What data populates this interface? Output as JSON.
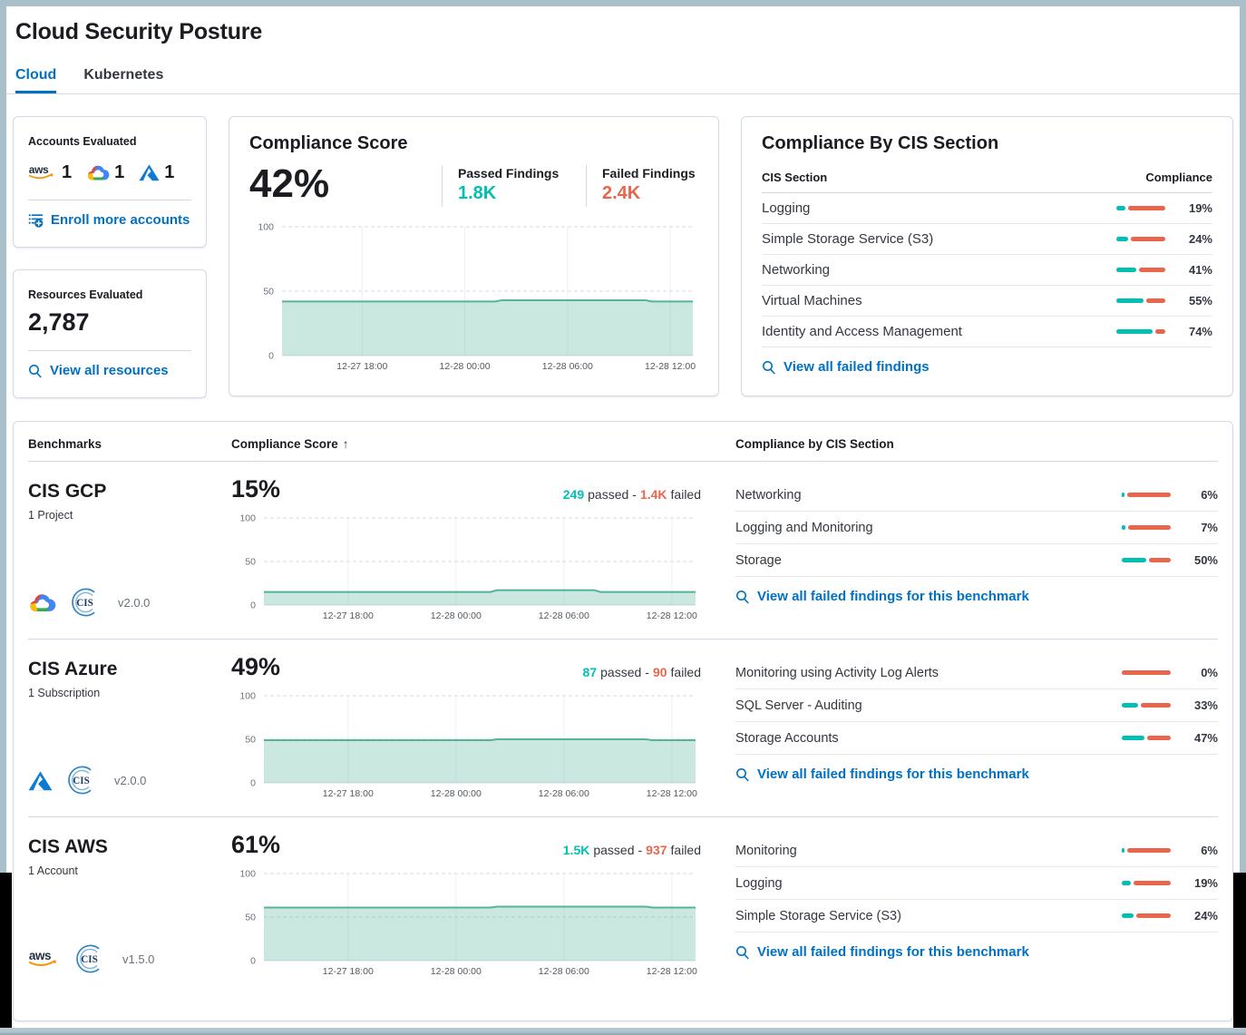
{
  "page": {
    "title": "Cloud Security Posture"
  },
  "tabs": [
    {
      "label": "Cloud"
    },
    {
      "label": "Kubernetes"
    }
  ],
  "accounts_card": {
    "title": "Accounts Evaluated",
    "providers": [
      {
        "name": "AWS",
        "count": "1"
      },
      {
        "name": "Google Cloud",
        "count": "1"
      },
      {
        "name": "Azure",
        "count": "1"
      }
    ],
    "enroll_link": "Enroll more accounts"
  },
  "resources_card": {
    "title": "Resources Evaluated",
    "count": "2,787",
    "view_link": "View all resources"
  },
  "score_card": {
    "title": "Compliance Score",
    "score": "42%",
    "passed_label": "Passed Findings",
    "passed_value": "1.8K",
    "failed_label": "Failed Findings",
    "failed_value": "2.4K"
  },
  "cis_card": {
    "title": "Compliance By CIS Section",
    "columns": {
      "section": "CIS Section",
      "compliance": "Compliance"
    },
    "rows": [
      {
        "name": "Logging",
        "pct": 19
      },
      {
        "name": "Simple Storage Service (S3)",
        "pct": 24
      },
      {
        "name": "Networking",
        "pct": 41
      },
      {
        "name": "Virtual Machines",
        "pct": 55
      },
      {
        "name": "Identity and Access Management",
        "pct": 74
      }
    ],
    "view_link": "View all failed findings"
  },
  "benchmarks": {
    "columns": {
      "benchmarks": "Benchmarks",
      "score": "Compliance Score",
      "sort_indicator": "↑",
      "sections": "Compliance by CIS Section"
    },
    "passed_word": "passed",
    "failed_word": "failed",
    "separator": "-",
    "view_link": "View all failed findings for this benchmark",
    "rows": [
      {
        "name": "CIS GCP",
        "scope": "1 Project",
        "score": "15%",
        "passed": "249",
        "failed": "1.4K",
        "version": "v2.0.0",
        "provider": "gcp",
        "sections": [
          {
            "name": "Networking",
            "pct": 6
          },
          {
            "name": "Logging and Monitoring",
            "pct": 7
          },
          {
            "name": "Storage",
            "pct": 50
          }
        ]
      },
      {
        "name": "CIS Azure",
        "scope": "1 Subscription",
        "score": "49%",
        "passed": "87",
        "failed": "90",
        "version": "v2.0.0",
        "provider": "azure",
        "sections": [
          {
            "name": "Monitoring using Activity Log Alerts",
            "pct": 0
          },
          {
            "name": "SQL Server - Auditing",
            "pct": 33
          },
          {
            "name": "Storage Accounts",
            "pct": 47
          }
        ]
      },
      {
        "name": "CIS AWS",
        "scope": "1 Account",
        "score": "61%",
        "passed": "1.5K",
        "failed": "937",
        "version": "v1.5.0",
        "provider": "aws",
        "sections": [
          {
            "name": "Monitoring",
            "pct": 6
          },
          {
            "name": "Logging",
            "pct": 19
          },
          {
            "name": "Simple Storage Service (S3)",
            "pct": 24
          }
        ]
      }
    ]
  },
  "colors": {
    "accent_teal": "#00BFB3",
    "accent_orange": "#E7664C",
    "link_blue": "#0071C2",
    "chart_line": "#54B399",
    "chart_fill": "rgba(84,179,153,0.30)"
  },
  "chart_data": [
    {
      "type": "area",
      "title": "Compliance Score trend",
      "ylabel": "",
      "ylim": [
        0,
        100
      ],
      "y_ticks": [
        0,
        50,
        100
      ],
      "x_ticks": [
        {
          "f": 0.195,
          "label": "12-27 18:00"
        },
        {
          "f": 0.445,
          "label": "12-28 00:00"
        },
        {
          "f": 0.695,
          "label": "12-28 06:00"
        },
        {
          "f": 0.945,
          "label": "12-28 12:00"
        }
      ],
      "points": [
        [
          0,
          42
        ],
        [
          0.52,
          42
        ],
        [
          0.535,
          43
        ],
        [
          0.885,
          43
        ],
        [
          0.9,
          42
        ],
        [
          1,
          42
        ]
      ],
      "grid": true,
      "legend": false
    },
    {
      "type": "area",
      "title": "CIS GCP compliance trend",
      "ylabel": "",
      "ylim": [
        0,
        100
      ],
      "y_ticks": [
        0,
        50,
        100
      ],
      "x_ticks": [
        {
          "f": 0.195,
          "label": "12-27 18:00"
        },
        {
          "f": 0.445,
          "label": "12-28 00:00"
        },
        {
          "f": 0.695,
          "label": "12-28 06:00"
        },
        {
          "f": 0.945,
          "label": "12-28 12:00"
        }
      ],
      "points": [
        [
          0,
          15
        ],
        [
          0.525,
          15
        ],
        [
          0.54,
          17
        ],
        [
          0.765,
          17
        ],
        [
          0.78,
          15
        ],
        [
          1,
          15
        ]
      ],
      "grid": true,
      "legend": false
    },
    {
      "type": "area",
      "title": "CIS Azure compliance trend",
      "ylabel": "",
      "ylim": [
        0,
        100
      ],
      "y_ticks": [
        0,
        50,
        100
      ],
      "x_ticks": [
        {
          "f": 0.195,
          "label": "12-27 18:00"
        },
        {
          "f": 0.445,
          "label": "12-28 00:00"
        },
        {
          "f": 0.695,
          "label": "12-28 06:00"
        },
        {
          "f": 0.945,
          "label": "12-28 12:00"
        }
      ],
      "points": [
        [
          0,
          49
        ],
        [
          0.525,
          49
        ],
        [
          0.54,
          50
        ],
        [
          0.885,
          50
        ],
        [
          0.9,
          49
        ],
        [
          1,
          49
        ]
      ],
      "grid": true,
      "legend": false
    },
    {
      "type": "area",
      "title": "CIS AWS compliance trend",
      "ylabel": "",
      "ylim": [
        0,
        100
      ],
      "y_ticks": [
        0,
        50,
        100
      ],
      "x_ticks": [
        {
          "f": 0.195,
          "label": "12-27 18:00"
        },
        {
          "f": 0.445,
          "label": "12-28 00:00"
        },
        {
          "f": 0.695,
          "label": "12-28 06:00"
        },
        {
          "f": 0.945,
          "label": "12-28 12:00"
        }
      ],
      "points": [
        [
          0,
          61
        ],
        [
          0.525,
          61
        ],
        [
          0.54,
          62
        ],
        [
          0.885,
          62
        ],
        [
          0.9,
          61
        ],
        [
          1,
          61
        ]
      ],
      "grid": true,
      "legend": false
    }
  ]
}
